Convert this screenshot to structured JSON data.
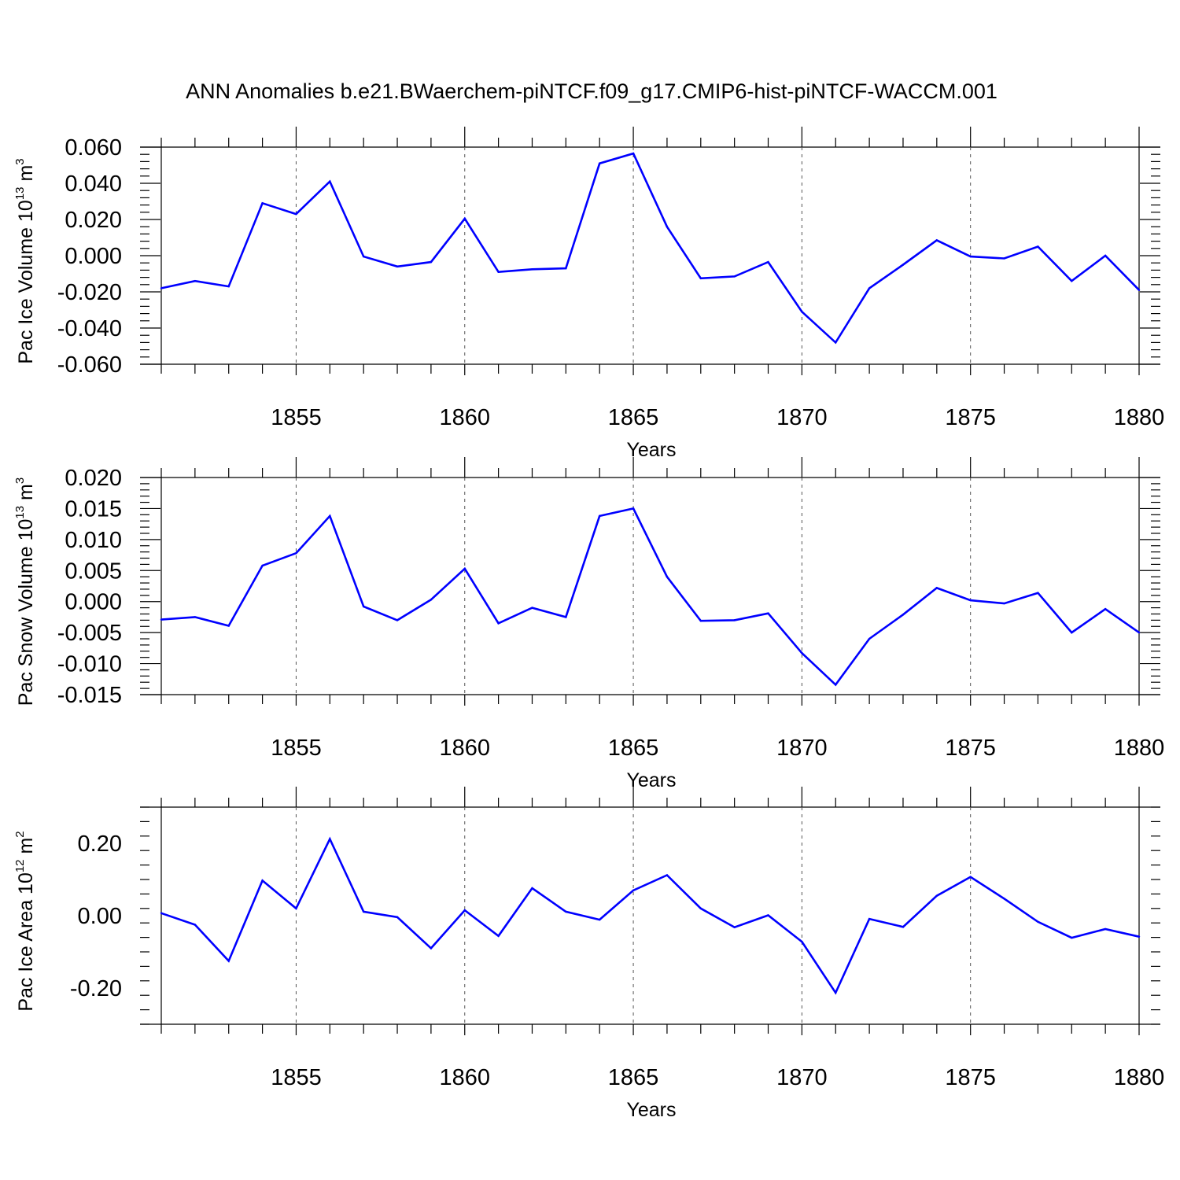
{
  "title": "ANN Anomalies b.e21.BWaerchem-piNTCF.f09_g17.CMIP6-hist-piNTCF-WACCM.001",
  "line_color": "#0000ff",
  "chart_data": [
    {
      "type": "line",
      "ylabel": {
        "pre": "Pac Ice Volume 10",
        "exp": "13",
        "unit": " m",
        "unit_exp": "3"
      },
      "xlabel": "Years",
      "xlim": [
        1851,
        1880
      ],
      "ylim": [
        -0.06,
        0.06
      ],
      "yticks": [
        -0.06,
        -0.04,
        -0.02,
        0.0,
        0.02,
        0.04,
        0.06
      ],
      "ytick_labels": [
        "-0.060",
        "-0.040",
        "-0.020",
        "0.000",
        "0.020",
        "0.040",
        "0.060"
      ],
      "xticks": [
        1855,
        1860,
        1865,
        1870,
        1875,
        1880
      ],
      "xtick_labels": [
        "1855",
        "1860",
        "1865",
        "1870",
        "1875",
        "1880"
      ],
      "x": [
        1851,
        1852,
        1853,
        1854,
        1855,
        1856,
        1857,
        1858,
        1859,
        1860,
        1861,
        1862,
        1863,
        1864,
        1865,
        1866,
        1867,
        1868,
        1869,
        1870,
        1871,
        1872,
        1873,
        1874,
        1875,
        1876,
        1877,
        1878,
        1879,
        1880
      ],
      "values": [
        -0.018,
        -0.014,
        -0.017,
        0.029,
        0.023,
        0.041,
        -0.0005,
        -0.006,
        -0.0035,
        0.0205,
        -0.009,
        -0.0075,
        -0.007,
        0.051,
        0.0565,
        0.016,
        -0.0125,
        -0.0115,
        -0.0035,
        -0.031,
        -0.048,
        -0.018,
        -0.005,
        0.0085,
        -0.0005,
        -0.0015,
        0.005,
        -0.014,
        0.0,
        -0.019
      ]
    },
    {
      "type": "line",
      "ylabel": {
        "pre": "Pac Snow Volume 10",
        "exp": "13",
        "unit": " m",
        "unit_exp": "3"
      },
      "xlabel": "Years",
      "xlim": [
        1851,
        1880
      ],
      "ylim": [
        -0.015,
        0.02
      ],
      "yticks": [
        -0.015,
        -0.01,
        -0.005,
        0.0,
        0.005,
        0.01,
        0.015,
        0.02
      ],
      "ytick_labels": [
        "-0.015",
        "-0.010",
        "-0.005",
        "0.000",
        "0.005",
        "0.010",
        "0.015",
        "0.020"
      ],
      "xticks": [
        1855,
        1860,
        1865,
        1870,
        1875,
        1880
      ],
      "xtick_labels": [
        "1855",
        "1860",
        "1865",
        "1870",
        "1875",
        "1880"
      ],
      "x": [
        1851,
        1852,
        1853,
        1854,
        1855,
        1856,
        1857,
        1858,
        1859,
        1860,
        1861,
        1862,
        1863,
        1864,
        1865,
        1866,
        1867,
        1868,
        1869,
        1870,
        1871,
        1872,
        1873,
        1874,
        1875,
        1876,
        1877,
        1878,
        1879,
        1880
      ],
      "values": [
        -0.0029,
        -0.0025,
        -0.0039,
        0.0058,
        0.0078,
        0.0138,
        -0.0008,
        -0.003,
        0.0003,
        0.0053,
        -0.0035,
        -0.001,
        -0.0025,
        0.0138,
        0.015,
        0.004,
        -0.0031,
        -0.003,
        -0.0019,
        -0.0083,
        -0.0134,
        -0.006,
        -0.0021,
        0.0022,
        0.0002,
        -0.0003,
        0.0014,
        -0.005,
        -0.0012,
        -0.005
      ]
    },
    {
      "type": "line",
      "ylabel": {
        "pre": "Pac Ice Area 10",
        "exp": "12",
        "unit": " m",
        "unit_exp": "2"
      },
      "xlabel": "Years",
      "xlim": [
        1851,
        1880
      ],
      "ylim": [
        -0.3,
        0.3
      ],
      "yticks": [
        -0.2,
        0.0,
        0.2
      ],
      "ytick_labels": [
        "-0.20",
        "0.00",
        "0.20"
      ],
      "xticks": [
        1855,
        1860,
        1865,
        1870,
        1875,
        1880
      ],
      "xtick_labels": [
        "1855",
        "1860",
        "1865",
        "1870",
        "1875",
        "1880"
      ],
      "x": [
        1851,
        1852,
        1853,
        1854,
        1855,
        1856,
        1857,
        1858,
        1859,
        1860,
        1861,
        1862,
        1863,
        1864,
        1865,
        1866,
        1867,
        1868,
        1869,
        1870,
        1871,
        1872,
        1873,
        1874,
        1875,
        1876,
        1877,
        1878,
        1879,
        1880
      ],
      "values": [
        0.007,
        -0.025,
        -0.125,
        0.097,
        0.02,
        0.212,
        0.011,
        -0.004,
        -0.09,
        0.015,
        -0.056,
        0.076,
        0.011,
        -0.011,
        0.07,
        0.112,
        0.02,
        -0.032,
        0.001,
        -0.072,
        -0.213,
        -0.009,
        -0.031,
        0.055,
        0.107,
        0.047,
        -0.017,
        -0.061,
        -0.037,
        -0.058
      ]
    }
  ]
}
